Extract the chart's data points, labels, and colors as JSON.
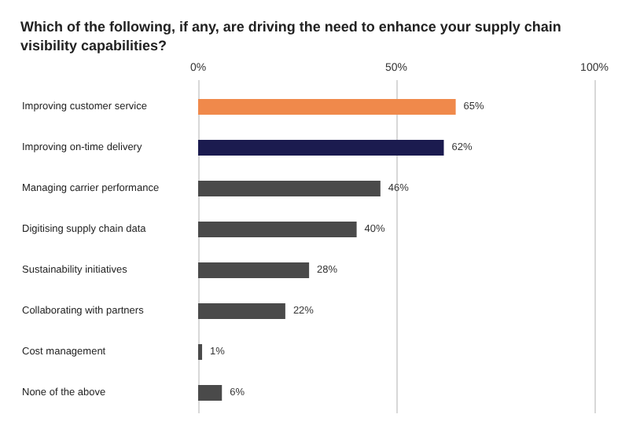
{
  "chart_data": {
    "type": "bar",
    "orientation": "horizontal",
    "title": "Which of the following, if any, are driving the need to enhance your supply chain visibility capabilities?",
    "categories": [
      "Improving customer service",
      "Improving on-time delivery",
      "Managing carrier performance",
      "Digitising supply chain data",
      "Sustainability initiatives",
      "Collaborating with partners",
      "Cost management",
      "None of the above"
    ],
    "values": [
      65,
      62,
      46,
      40,
      28,
      22,
      1,
      6
    ],
    "colors": [
      "#f0894b",
      "#1b1b4f",
      "#4a4a4a",
      "#4a4a4a",
      "#4a4a4a",
      "#4a4a4a",
      "#4a4a4a",
      "#4a4a4a"
    ],
    "value_labels": [
      "65%",
      "62%",
      "46%",
      "40%",
      "28%",
      "22%",
      "1%",
      "6%"
    ],
    "xlim": [
      0,
      100
    ],
    "xticks": [
      {
        "value": 0,
        "label": "0%"
      },
      {
        "value": 50,
        "label": "50%"
      },
      {
        "value": 100,
        "label": "100%"
      }
    ],
    "grid": "x"
  }
}
